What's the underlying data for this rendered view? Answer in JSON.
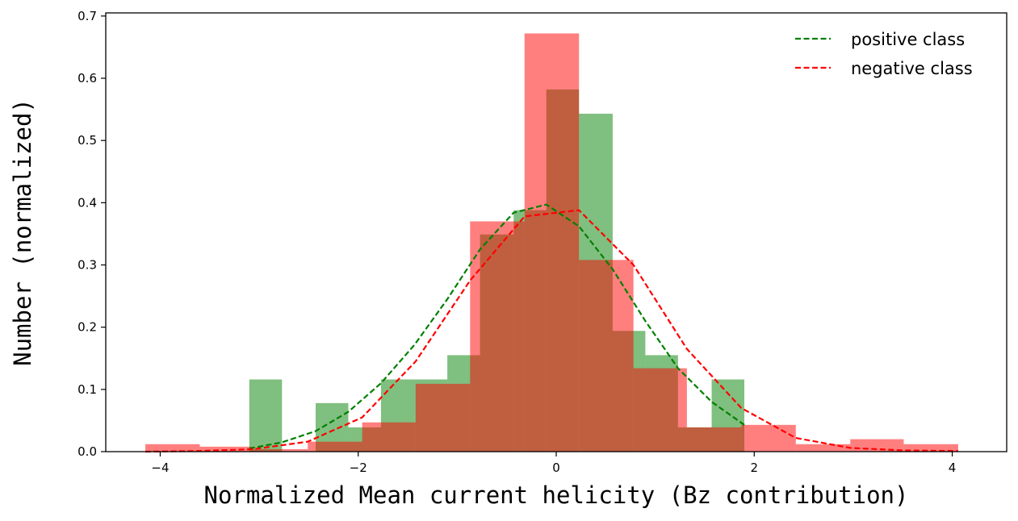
{
  "chart_data": {
    "type": "bar",
    "subtype": "overlaid histogram with density curves",
    "title": "",
    "xlabel": "Normalized Mean current helicity (Bz contribution)",
    "ylabel": "Number (normalized)",
    "xlim": [
      -4.55,
      4.55
    ],
    "ylim": [
      0,
      0.705
    ],
    "xticks": [
      -4,
      -2,
      0,
      2,
      4
    ],
    "xtick_labels": [
      "−4",
      "−2",
      "0",
      "2",
      "4"
    ],
    "yticks": [
      0.0,
      0.1,
      0.2,
      0.3,
      0.4,
      0.5,
      0.6,
      0.7
    ],
    "ytick_labels": [
      "0.0",
      "0.1",
      "0.2",
      "0.3",
      "0.4",
      "0.5",
      "0.6",
      "0.7"
    ],
    "grid": false,
    "legend": {
      "placement": "upper right",
      "entries": [
        "positive class",
        "negative class"
      ]
    },
    "histograms": [
      {
        "name": "positive class",
        "color": "#008000",
        "alpha": 0.5,
        "bins": [
          {
            "x0": -3.1,
            "x1": -2.77,
            "h": 0.116
          },
          {
            "x0": -2.77,
            "x1": -2.43,
            "h": 0.0
          },
          {
            "x0": -2.43,
            "x1": -2.1,
            "h": 0.078
          },
          {
            "x0": -2.1,
            "x1": -1.77,
            "h": 0.039
          },
          {
            "x0": -1.77,
            "x1": -1.43,
            "h": 0.116
          },
          {
            "x0": -1.43,
            "x1": -1.1,
            "h": 0.116
          },
          {
            "x0": -1.1,
            "x1": -0.77,
            "h": 0.155
          },
          {
            "x0": -0.77,
            "x1": -0.43,
            "h": 0.349
          },
          {
            "x0": -0.43,
            "x1": -0.1,
            "h": 0.388
          },
          {
            "x0": -0.1,
            "x1": 0.23,
            "h": 0.582
          },
          {
            "x0": 0.23,
            "x1": 0.57,
            "h": 0.543
          },
          {
            "x0": 0.57,
            "x1": 0.9,
            "h": 0.194
          },
          {
            "x0": 0.9,
            "x1": 1.23,
            "h": 0.155
          },
          {
            "x0": 1.23,
            "x1": 1.57,
            "h": 0.039
          },
          {
            "x0": 1.57,
            "x1": 1.9,
            "h": 0.116
          }
        ]
      },
      {
        "name": "negative class",
        "color": "#ff0000",
        "alpha": 0.5,
        "bins": [
          {
            "x0": -4.15,
            "x1": -3.6,
            "h": 0.012
          },
          {
            "x0": -3.6,
            "x1": -3.06,
            "h": 0.008
          },
          {
            "x0": -3.06,
            "x1": -2.51,
            "h": 0.004
          },
          {
            "x0": -2.51,
            "x1": -1.96,
            "h": 0.016
          },
          {
            "x0": -1.96,
            "x1": -1.42,
            "h": 0.047
          },
          {
            "x0": -1.42,
            "x1": -0.87,
            "h": 0.109
          },
          {
            "x0": -0.87,
            "x1": -0.32,
            "h": 0.37
          },
          {
            "x0": -0.32,
            "x1": 0.23,
            "h": 0.672
          },
          {
            "x0": 0.23,
            "x1": 0.78,
            "h": 0.308
          },
          {
            "x0": 0.78,
            "x1": 1.32,
            "h": 0.134
          },
          {
            "x0": 1.32,
            "x1": 1.87,
            "h": 0.039
          },
          {
            "x0": 1.87,
            "x1": 2.42,
            "h": 0.043
          },
          {
            "x0": 2.42,
            "x1": 2.97,
            "h": 0.012
          },
          {
            "x0": 2.97,
            "x1": 3.51,
            "h": 0.02
          },
          {
            "x0": 3.51,
            "x1": 4.06,
            "h": 0.012
          }
        ]
      }
    ],
    "series": [
      {
        "name": "positive class",
        "style": "dashed",
        "color": "#008000",
        "x": [
          -3.1,
          -2.77,
          -2.43,
          -2.1,
          -1.77,
          -1.43,
          -1.1,
          -0.77,
          -0.43,
          -0.1,
          0.23,
          0.57,
          0.9,
          1.23,
          1.57,
          1.9
        ],
        "y": [
          0.005,
          0.015,
          0.033,
          0.064,
          0.11,
          0.172,
          0.245,
          0.325,
          0.384,
          0.397,
          0.362,
          0.293,
          0.21,
          0.134,
          0.08,
          0.043
        ]
      },
      {
        "name": "negative class",
        "style": "dashed",
        "color": "#ff0000",
        "x": [
          -4.15,
          -3.6,
          -3.06,
          -2.51,
          -1.96,
          -1.42,
          -0.87,
          -0.32,
          0.23,
          0.78,
          1.32,
          1.87,
          2.42,
          2.97,
          3.51,
          4.06
        ],
        "y": [
          0.0,
          0.001,
          0.004,
          0.016,
          0.055,
          0.145,
          0.275,
          0.378,
          0.388,
          0.3,
          0.165,
          0.07,
          0.022,
          0.006,
          0.002,
          0.001
        ]
      }
    ]
  }
}
